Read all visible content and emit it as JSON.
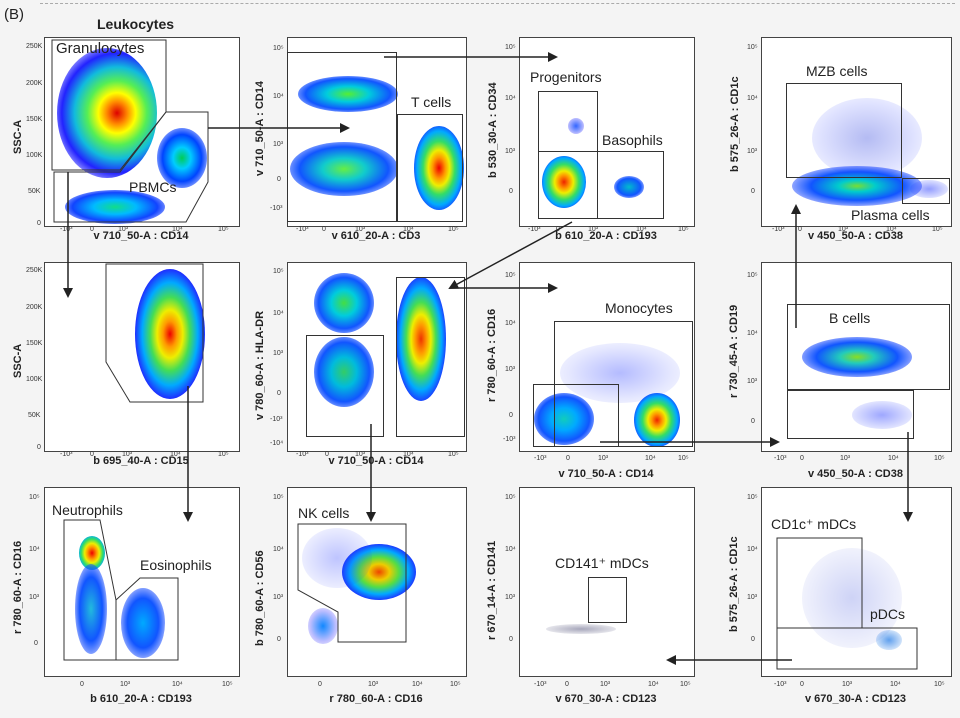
{
  "figure": {
    "panel_letter": "(B)",
    "top_title": "Leukocytes"
  },
  "plots": {
    "p1": {
      "xlabel": "v 710_50-A : CD14",
      "ylabel": "SSC-A",
      "gate1": "Granulocytes",
      "gate2": "PBMCs",
      "xticks": [
        "-10³",
        "0",
        "10³",
        "10⁴",
        "10⁵"
      ],
      "yticks": [
        "250K",
        "200K",
        "150K",
        "100K",
        "50K",
        "0"
      ]
    },
    "p2": {
      "xlabel": "v 610_20-A : CD3",
      "ylabel": "v 710_50-A : CD14",
      "gate1": "T cells",
      "xticks": [
        "-10³",
        "0",
        "10³",
        "10⁴",
        "10⁵"
      ],
      "yticks": [
        "10⁵",
        "10⁴",
        "10³",
        "0",
        "-10³"
      ]
    },
    "p3": {
      "xlabel": "b 610_20-A : CD193",
      "ylabel": "b 530_30-A : CD34",
      "gate1": "Progenitors",
      "gate2": "Basophils",
      "xticks": [
        "-10³",
        "0",
        "10³",
        "10⁴",
        "10⁵"
      ],
      "yticks": [
        "10⁵",
        "10⁴",
        "10³",
        "0"
      ]
    },
    "p4": {
      "xlabel": "v 450_50-A : CD38",
      "ylabel": "b 575_26-A : CD1c",
      "gate1": "MZB cells",
      "gate2": "Plasma cells",
      "xticks": [
        "-10³",
        "0",
        "10³",
        "10⁴",
        "10⁵"
      ],
      "yticks": [
        "10⁵",
        "10⁴",
        "10³",
        "0"
      ]
    },
    "p5": {
      "xlabel": "b 695_40-A : CD15",
      "ylabel": "SSC-A",
      "xticks": [
        "-10³",
        "0",
        "10³",
        "10⁴",
        "10⁵"
      ],
      "yticks": [
        "250K",
        "200K",
        "150K",
        "100K",
        "50K",
        "0"
      ]
    },
    "p6": {
      "xlabel": "v 710_50-A : CD14",
      "ylabel": "v 780_60-A : HLA-DR",
      "xticks": [
        "-10³",
        "0",
        "10³",
        "10⁴",
        "10⁵"
      ],
      "yticks": [
        "10⁵",
        "10⁴",
        "10³",
        "0",
        "-10³",
        "-10⁴"
      ]
    },
    "p7": {
      "xlabel": "v 710_50-A : CD14",
      "ylabel": "r 780_60-A : CD16",
      "gate1": "Monocytes",
      "xticks": [
        "-10³",
        "0",
        "10³",
        "10⁴",
        "10⁵"
      ],
      "yticks": [
        "10⁵",
        "10⁴",
        "10³",
        "0",
        "-10³"
      ]
    },
    "p8": {
      "xlabel": "v 450_50-A : CD38",
      "ylabel": "r 730_45-A : CD19",
      "gate1": "B cells",
      "xticks": [
        "-10³",
        "0",
        "10³",
        "10⁴",
        "10⁵"
      ],
      "yticks": [
        "10⁵",
        "10⁴",
        "10³",
        "0"
      ]
    },
    "p9": {
      "xlabel": "b 610_20-A : CD193",
      "ylabel": "r 780_60-A : CD16",
      "gate1": "Neutrophils",
      "gate2": "Eosinophils",
      "xticks": [
        "0",
        "10³",
        "10⁴",
        "10⁵"
      ],
      "yticks": [
        "10⁵",
        "10⁴",
        "10³",
        "0"
      ]
    },
    "p10": {
      "xlabel": "r 780_60-A : CD16",
      "ylabel": "b 780_60-A : CD56",
      "gate1": "NK cells",
      "xticks": [
        "0",
        "10³",
        "10⁴",
        "10⁵"
      ],
      "yticks": [
        "10⁵",
        "10⁴",
        "10³",
        "0"
      ]
    },
    "p11": {
      "xlabel": "v 670_30-A : CD123",
      "ylabel": "r 670_14-A : CD141",
      "gate1": "CD141⁺ mDCs",
      "xticks": [
        "-10³",
        "0",
        "10³",
        "10⁴",
        "10⁵"
      ],
      "yticks": [
        "10⁵",
        "10⁴",
        "10³",
        "0"
      ]
    },
    "p12": {
      "xlabel": "v 670_30-A : CD123",
      "ylabel": "b 575_26-A : CD1c",
      "gate1": "CD1c⁺ mDCs",
      "gate2": "pDCs",
      "xticks": [
        "-10³",
        "0",
        "10³",
        "10⁴",
        "10⁵"
      ],
      "yticks": [
        "10⁵",
        "10⁴",
        "10³",
        "0"
      ]
    }
  }
}
